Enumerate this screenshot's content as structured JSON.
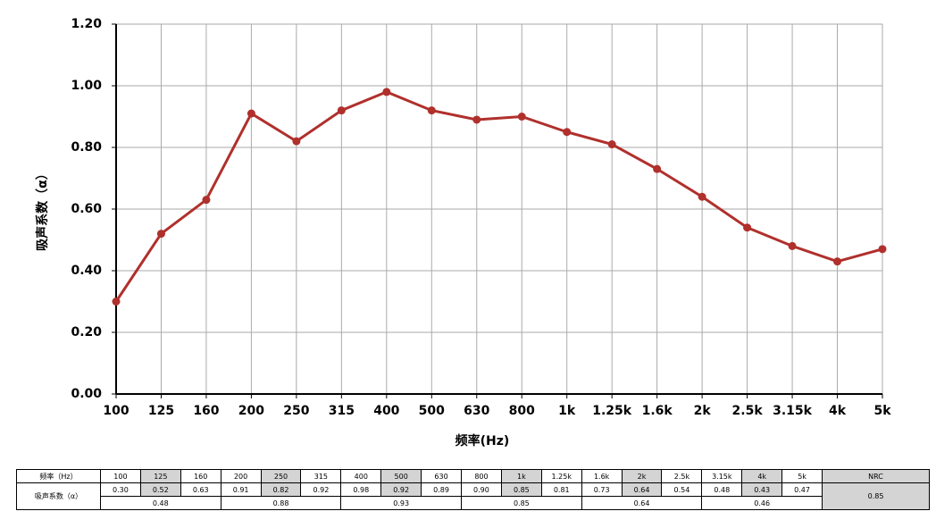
{
  "chart_data": {
    "type": "line",
    "x_label": "频率(Hz)",
    "y_label": "吸声系数（α）",
    "categories": [
      "100",
      "125",
      "160",
      "200",
      "250",
      "315",
      "400",
      "500",
      "630",
      "800",
      "1k",
      "1.25k",
      "1.6k",
      "2k",
      "2.5k",
      "3.15k",
      "4k",
      "5k"
    ],
    "series": [
      {
        "name": "吸声系数",
        "color": "#b0302c",
        "values": [
          0.3,
          0.52,
          0.63,
          0.91,
          0.82,
          0.92,
          0.98,
          0.92,
          0.89,
          0.9,
          0.85,
          0.81,
          0.73,
          0.64,
          0.54,
          0.48,
          0.43,
          0.47
        ]
      }
    ],
    "ylim": [
      0,
      1.2
    ],
    "yticks": [
      {
        "value": 0,
        "label": "0.00"
      },
      {
        "value": 0.2,
        "label": "0.20"
      },
      {
        "value": 0.4,
        "label": "0.40"
      },
      {
        "value": 0.6,
        "label": "0.60"
      },
      {
        "value": 0.8,
        "label": "0.80"
      },
      {
        "value": 1.0,
        "label": "1.00"
      },
      {
        "value": 1.2,
        "label": "1.20"
      }
    ],
    "grid": true
  },
  "table": {
    "header_label": "频率（Hz）",
    "frequencies": [
      "100",
      "125",
      "160",
      "200",
      "250",
      "315",
      "400",
      "500",
      "630",
      "800",
      "1k",
      "1.25k",
      "1.6k",
      "2k",
      "2.5k",
      "3.15k",
      "4k",
      "5k"
    ],
    "nrc_label": "NRC",
    "row_label": "吸声系数（α）",
    "coefficients": [
      "0.30",
      "0.52",
      "0.63",
      "0.91",
      "0.82",
      "0.92",
      "0.98",
      "0.92",
      "0.89",
      "0.90",
      "0.85",
      "0.81",
      "0.73",
      "0.64",
      "0.54",
      "0.48",
      "0.43",
      "0.47"
    ],
    "averages": [
      "0.48",
      "0.88",
      "0.93",
      "0.85",
      "0.64",
      "0.46"
    ],
    "nrc": "0.85"
  }
}
